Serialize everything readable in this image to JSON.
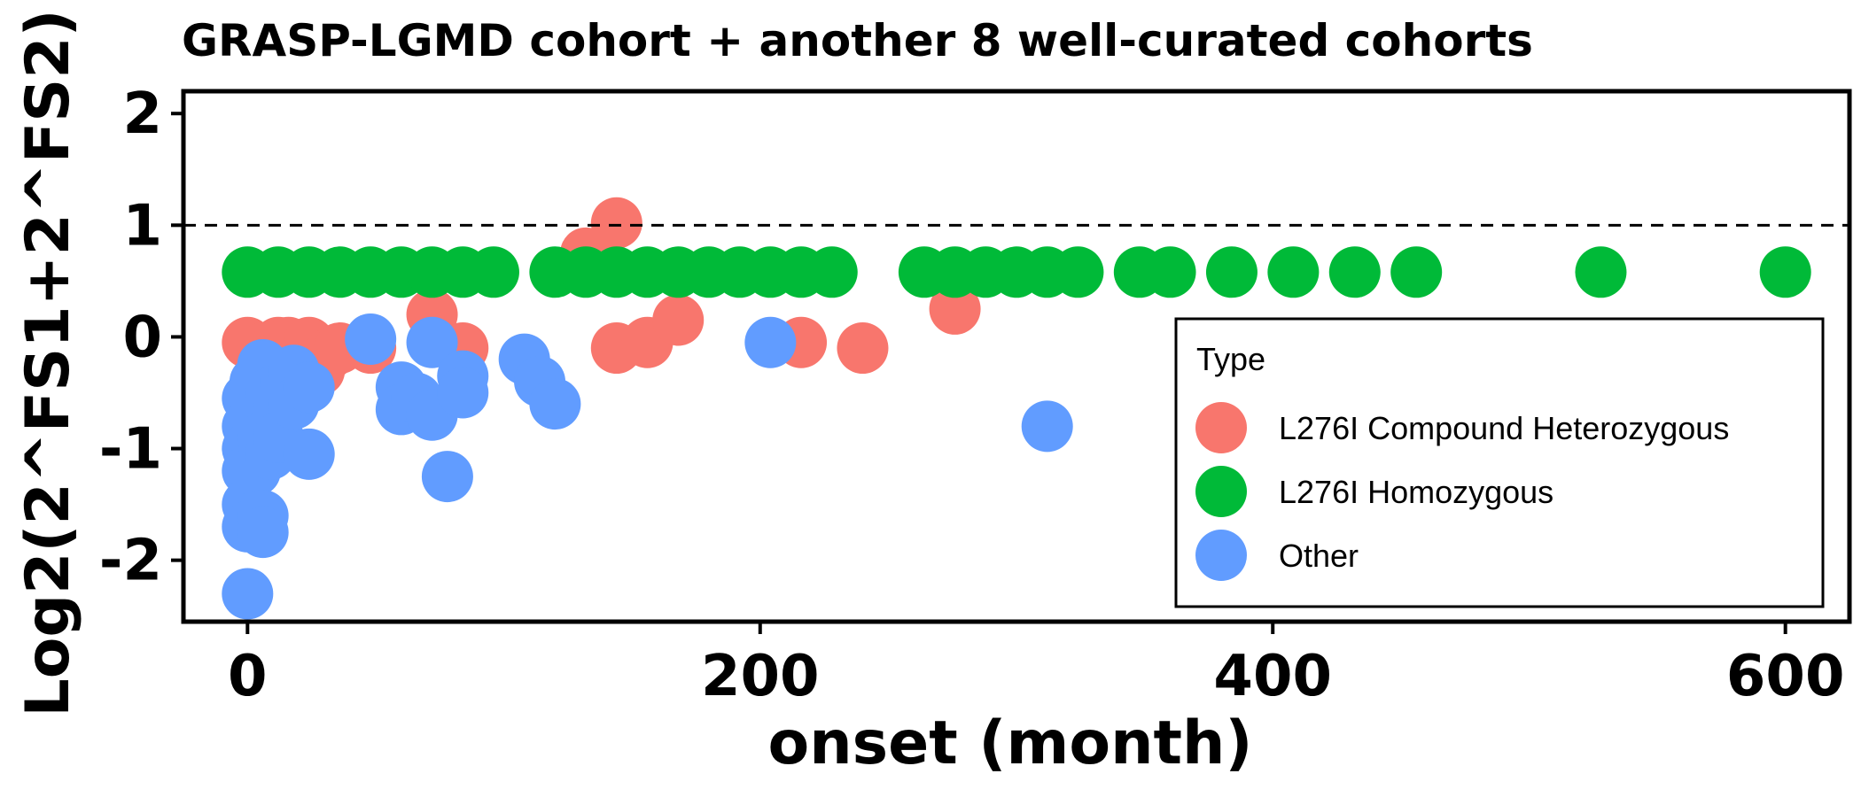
{
  "chart_data": {
    "type": "scatter",
    "title": "GRASP-LGMD cohort + another 8 well-curated cohorts",
    "xlabel": "onset (month)",
    "ylabel": "Log2(2^FS1+2^FS2)",
    "xlim": [
      -25,
      625
    ],
    "ylim": [
      -2.55,
      2.2
    ],
    "x_ticks": [
      "0",
      "200",
      "400",
      "600"
    ],
    "x_tick_values": [
      0,
      200,
      400,
      600
    ],
    "y_ticks": [
      "2",
      "1",
      "0",
      "-1",
      "-2"
    ],
    "y_tick_values": [
      2,
      1,
      0,
      -1,
      -2
    ],
    "reference_line": {
      "y": 1,
      "style": "dashed"
    },
    "grid": false,
    "legend": {
      "title": "Type",
      "position": "bottom-right",
      "entries": [
        {
          "label": "L276I Compound Heterozygous",
          "color": "#F8766D"
        },
        {
          "label": "L276I Homozygous",
          "color": "#00BA38"
        },
        {
          "label": "Other",
          "color": "#619CFF"
        }
      ]
    },
    "series": [
      {
        "name": "L276I Compound Heterozygous",
        "color": "#F8766D",
        "points": [
          [
            0,
            -0.05
          ],
          [
            6,
            -0.1
          ],
          [
            12,
            -0.05
          ],
          [
            16,
            -0.05
          ],
          [
            20,
            -0.15
          ],
          [
            24,
            -0.05
          ],
          [
            28,
            -0.3
          ],
          [
            32,
            -0.15
          ],
          [
            36,
            -0.1
          ],
          [
            48,
            -0.1
          ],
          [
            72,
            0.2
          ],
          [
            84,
            -0.1
          ],
          [
            132,
            0.75
          ],
          [
            144,
            1.02
          ],
          [
            144,
            -0.1
          ],
          [
            156,
            -0.05
          ],
          [
            168,
            0.15
          ],
          [
            216,
            -0.05
          ],
          [
            240,
            -0.1
          ],
          [
            276,
            0.25
          ]
        ]
      },
      {
        "name": "L276I Homozygous",
        "color": "#00BA38",
        "points": [
          [
            0,
            0.58
          ],
          [
            12,
            0.58
          ],
          [
            24,
            0.58
          ],
          [
            36,
            0.58
          ],
          [
            48,
            0.58
          ],
          [
            60,
            0.58
          ],
          [
            72,
            0.58
          ],
          [
            84,
            0.58
          ],
          [
            96,
            0.58
          ],
          [
            120,
            0.58
          ],
          [
            132,
            0.58
          ],
          [
            144,
            0.58
          ],
          [
            156,
            0.58
          ],
          [
            168,
            0.58
          ],
          [
            180,
            0.58
          ],
          [
            192,
            0.58
          ],
          [
            204,
            0.58
          ],
          [
            216,
            0.58
          ],
          [
            228,
            0.58
          ],
          [
            264,
            0.58
          ],
          [
            276,
            0.58
          ],
          [
            288,
            0.58
          ],
          [
            300,
            0.58
          ],
          [
            312,
            0.58
          ],
          [
            324,
            0.58
          ],
          [
            348,
            0.58
          ],
          [
            360,
            0.58
          ],
          [
            384,
            0.58
          ],
          [
            408,
            0.58
          ],
          [
            432,
            0.58
          ],
          [
            456,
            0.58
          ],
          [
            528,
            0.58
          ],
          [
            600,
            0.58
          ]
        ]
      },
      {
        "name": "Other",
        "color": "#619CFF",
        "points": [
          [
            0,
            -0.55
          ],
          [
            0,
            -0.8
          ],
          [
            0,
            -1.0
          ],
          [
            0,
            -1.2
          ],
          [
            0,
            -1.5
          ],
          [
            0,
            -1.7
          ],
          [
            0,
            -2.3
          ],
          [
            3,
            -0.4
          ],
          [
            3,
            -0.7
          ],
          [
            3,
            -1.2
          ],
          [
            6,
            -0.25
          ],
          [
            6,
            -0.9
          ],
          [
            6,
            -1.6
          ],
          [
            6,
            -1.75
          ],
          [
            9,
            -0.5
          ],
          [
            9,
            -1.05
          ],
          [
            12,
            -0.65
          ],
          [
            12,
            -0.9
          ],
          [
            15,
            -0.4
          ],
          [
            18,
            -0.3
          ],
          [
            18,
            -0.6
          ],
          [
            24,
            -0.45
          ],
          [
            24,
            -1.05
          ],
          [
            48,
            -0.02
          ],
          [
            60,
            -0.45
          ],
          [
            60,
            -0.65
          ],
          [
            66,
            -0.55
          ],
          [
            72,
            -0.05
          ],
          [
            72,
            -0.7
          ],
          [
            78,
            -1.25
          ],
          [
            84,
            -0.35
          ],
          [
            84,
            -0.5
          ],
          [
            108,
            -0.2
          ],
          [
            114,
            -0.4
          ],
          [
            120,
            -0.6
          ],
          [
            204,
            -0.05
          ],
          [
            312,
            -0.8
          ]
        ]
      }
    ]
  }
}
